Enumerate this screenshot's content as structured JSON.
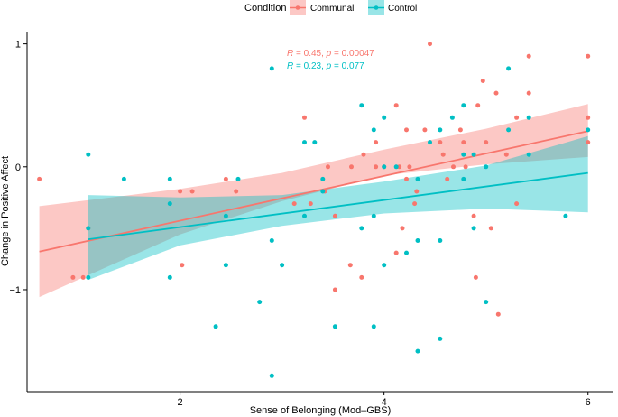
{
  "chart_data": {
    "type": "scatter",
    "title": "",
    "xlabel": "Sense of Belonging (Mod–GBS)",
    "ylabel": "Change in Positive Affect",
    "xlim": [
      0.5,
      6.25
    ],
    "ylim": [
      -1.83,
      1.1
    ],
    "x_ticks": [
      2,
      4,
      6
    ],
    "x_tick_labels": [
      "2",
      "4",
      "6"
    ],
    "y_ticks": [
      -1,
      0,
      1
    ],
    "y_tick_labels": [
      "−1",
      "0",
      "1"
    ],
    "legend": {
      "title": "Condition",
      "position": "top",
      "entries": [
        "Communal",
        "Control"
      ]
    },
    "series": [
      {
        "name": "Communal",
        "color": "#F8766D",
        "annotation": {
          "r_label": "R",
          "r_text": " = 0.45, ",
          "p_label": "p",
          "p_text": " = 0.00047"
        },
        "fit": {
          "x": [
            0.62,
            6.0
          ],
          "y": [
            -0.69,
            0.29
          ]
        },
        "band": {
          "x": [
            0.62,
            2.0,
            3.0,
            4.0,
            5.0,
            6.0
          ],
          "lower": [
            -1.06,
            -0.55,
            -0.28,
            -0.07,
            0.02,
            0.08
          ],
          "upper": [
            -0.32,
            -0.18,
            -0.05,
            0.14,
            0.31,
            0.51
          ]
        },
        "points": [
          [
            0.62,
            -0.1
          ],
          [
            0.95,
            -0.9
          ],
          [
            1.05,
            -0.9
          ],
          [
            1.1,
            -0.5
          ],
          [
            2.0,
            -0.2
          ],
          [
            2.02,
            -0.8
          ],
          [
            2.12,
            -0.2
          ],
          [
            2.45,
            -0.1
          ],
          [
            2.55,
            -0.2
          ],
          [
            3.12,
            -0.3
          ],
          [
            3.22,
            0.4
          ],
          [
            3.28,
            -0.3
          ],
          [
            3.42,
            -0.2
          ],
          [
            3.45,
            0.0
          ],
          [
            3.52,
            -0.4
          ],
          [
            3.52,
            -1.0
          ],
          [
            3.67,
            -0.8
          ],
          [
            3.68,
            0.0
          ],
          [
            3.78,
            -0.9
          ],
          [
            3.8,
            0.1
          ],
          [
            3.92,
            0.2
          ],
          [
            3.92,
            0.0
          ],
          [
            4.0,
            0.0
          ],
          [
            4.12,
            0.5
          ],
          [
            4.12,
            -0.7
          ],
          [
            4.15,
            0.0
          ],
          [
            4.18,
            -0.5
          ],
          [
            4.22,
            0.3
          ],
          [
            4.22,
            -0.1
          ],
          [
            4.25,
            0.0
          ],
          [
            4.3,
            -0.3
          ],
          [
            4.32,
            -0.2
          ],
          [
            4.4,
            0.3
          ],
          [
            4.45,
            1.0
          ],
          [
            4.55,
            0.2
          ],
          [
            4.58,
            0.1
          ],
          [
            4.62,
            -0.1
          ],
          [
            4.68,
            0.0
          ],
          [
            4.75,
            0.3
          ],
          [
            4.78,
            0.2
          ],
          [
            4.8,
            0.0
          ],
          [
            4.88,
            -0.4
          ],
          [
            4.9,
            -0.9
          ],
          [
            4.92,
            0.5
          ],
          [
            4.97,
            0.7
          ],
          [
            5.0,
            0.2
          ],
          [
            5.05,
            -0.5
          ],
          [
            5.1,
            0.6
          ],
          [
            5.12,
            -1.2
          ],
          [
            5.2,
            0.1
          ],
          [
            5.3,
            0.4
          ],
          [
            5.3,
            -0.3
          ],
          [
            5.42,
            0.9
          ],
          [
            5.42,
            0.6
          ],
          [
            6.0,
            0.9
          ],
          [
            6.0,
            0.4
          ],
          [
            6.0,
            0.2
          ]
        ]
      },
      {
        "name": "Control",
        "color": "#00BFC4",
        "annotation": {
          "r_label": "R",
          "r_text": " = 0.23, ",
          "p_label": "p",
          "p_text": " = 0.077"
        },
        "fit": {
          "x": [
            1.1,
            6.0
          ],
          "y": [
            -0.59,
            -0.05
          ]
        },
        "band": {
          "x": [
            1.1,
            2.0,
            3.0,
            4.0,
            5.0,
            6.0
          ],
          "lower": [
            -0.92,
            -0.64,
            -0.48,
            -0.38,
            -0.34,
            -0.37
          ],
          "upper": [
            -0.23,
            -0.25,
            -0.23,
            -0.12,
            0.01,
            0.25
          ]
        },
        "points": [
          [
            1.1,
            0.1
          ],
          [
            1.1,
            -0.5
          ],
          [
            1.1,
            -0.9
          ],
          [
            1.45,
            -0.1
          ],
          [
            1.9,
            -0.1
          ],
          [
            1.9,
            -0.3
          ],
          [
            1.9,
            -0.9
          ],
          [
            2.35,
            -1.3
          ],
          [
            2.45,
            -0.4
          ],
          [
            2.45,
            -0.8
          ],
          [
            2.57,
            -0.1
          ],
          [
            2.78,
            -1.1
          ],
          [
            2.9,
            0.8
          ],
          [
            2.9,
            -0.6
          ],
          [
            2.9,
            -1.7
          ],
          [
            3.0,
            -0.8
          ],
          [
            3.22,
            0.2
          ],
          [
            3.22,
            -0.4
          ],
          [
            3.32,
            0.2
          ],
          [
            3.4,
            -0.1
          ],
          [
            3.4,
            -0.2
          ],
          [
            3.52,
            -1.3
          ],
          [
            3.78,
            0.5
          ],
          [
            3.78,
            -0.5
          ],
          [
            3.9,
            0.3
          ],
          [
            3.9,
            -0.4
          ],
          [
            3.9,
            -1.3
          ],
          [
            4.0,
            0.4
          ],
          [
            4.0,
            0.0
          ],
          [
            4.0,
            -0.8
          ],
          [
            4.12,
            0.0
          ],
          [
            4.22,
            -0.7
          ],
          [
            4.33,
            -0.1
          ],
          [
            4.33,
            -0.6
          ],
          [
            4.33,
            -1.5
          ],
          [
            4.45,
            0.2
          ],
          [
            4.55,
            0.3
          ],
          [
            4.55,
            -0.6
          ],
          [
            4.55,
            -1.4
          ],
          [
            4.67,
            0.4
          ],
          [
            4.78,
            0.5
          ],
          [
            4.78,
            0.1
          ],
          [
            4.78,
            -0.1
          ],
          [
            4.88,
            0.1
          ],
          [
            4.88,
            -0.5
          ],
          [
            5.0,
            0.0
          ],
          [
            5.0,
            -1.1
          ],
          [
            5.22,
            0.8
          ],
          [
            5.22,
            0.3
          ],
          [
            5.42,
            0.4
          ],
          [
            5.42,
            0.1
          ],
          [
            5.78,
            -0.4
          ],
          [
            6.0,
            0.3
          ]
        ]
      }
    ]
  }
}
